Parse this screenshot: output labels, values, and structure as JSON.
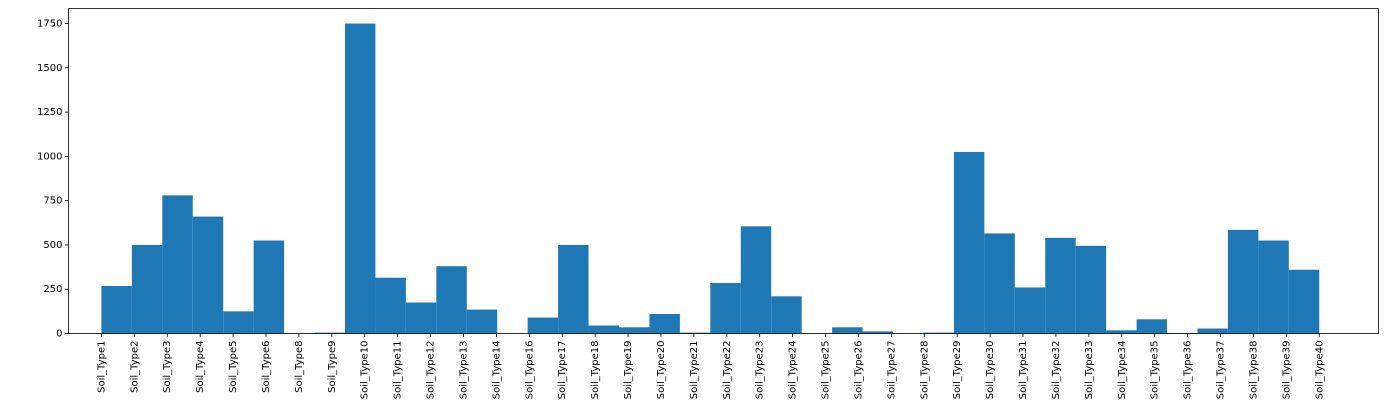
{
  "chart_data": {
    "type": "histogram",
    "color": "#1f77b4",
    "bins": [
      0,
      0.925,
      1.85,
      2.775,
      3.7,
      4.625,
      5.55,
      6.475,
      7.4,
      8.325,
      9.25,
      10.175,
      11.1,
      12.025,
      12.95,
      13.875,
      14.8,
      15.725,
      16.65,
      17.575,
      18.5,
      19.425,
      20.35,
      21.275,
      22.2,
      23.125,
      24.05,
      24.975,
      25.9,
      26.825,
      27.75,
      28.675,
      29.6,
      30.525,
      31.45,
      32.375,
      33.3,
      34.225,
      35.15,
      36.075,
      37
    ],
    "values": [
      268,
      500,
      780,
      660,
      125,
      525,
      1,
      5,
      1750,
      315,
      175,
      380,
      135,
      0,
      90,
      500,
      45,
      35,
      110,
      5,
      285,
      605,
      210,
      1,
      35,
      12,
      0,
      5,
      1025,
      565,
      260,
      540,
      495,
      18,
      80,
      3,
      28,
      585,
      525,
      360
    ],
    "xlim": [
      -1,
      38.8
    ],
    "xticks": [
      {
        "value": 0,
        "label": "Soil_Type1"
      },
      {
        "value": 1,
        "label": "Soil_Type2"
      },
      {
        "value": 2,
        "label": "Soil_Type3"
      },
      {
        "value": 3,
        "label": "Soil_Type4"
      },
      {
        "value": 4,
        "label": "Soil_Type5"
      },
      {
        "value": 5,
        "label": "Soil_Type6"
      },
      {
        "value": 6,
        "label": "Soil_Type8"
      },
      {
        "value": 7,
        "label": "Soil_Type9"
      },
      {
        "value": 8,
        "label": "Soil_Type10"
      },
      {
        "value": 9,
        "label": "Soil_Type11"
      },
      {
        "value": 10,
        "label": "Soil_Type12"
      },
      {
        "value": 11,
        "label": "Soil_Type13"
      },
      {
        "value": 12,
        "label": "Soil_Type14"
      },
      {
        "value": 13,
        "label": "Soil_Type16"
      },
      {
        "value": 14,
        "label": "Soil_Type17"
      },
      {
        "value": 15,
        "label": "Soil_Type18"
      },
      {
        "value": 16,
        "label": "Soil_Type19"
      },
      {
        "value": 17,
        "label": "Soil_Type20"
      },
      {
        "value": 18,
        "label": "Soil_Type21"
      },
      {
        "value": 19,
        "label": "Soil_Type22"
      },
      {
        "value": 20,
        "label": "Soil_Type23"
      },
      {
        "value": 21,
        "label": "Soil_Type24"
      },
      {
        "value": 22,
        "label": "Soil_Type25"
      },
      {
        "value": 23,
        "label": "Soil_Type26"
      },
      {
        "value": 24,
        "label": "Soil_Type27"
      },
      {
        "value": 25,
        "label": "Soil_Type28"
      },
      {
        "value": 26,
        "label": "Soil_Type29"
      },
      {
        "value": 27,
        "label": "Soil_Type30"
      },
      {
        "value": 28,
        "label": "Soil_Type31"
      },
      {
        "value": 29,
        "label": "Soil_Type32"
      },
      {
        "value": 30,
        "label": "Soil_Type33"
      },
      {
        "value": 31,
        "label": "Soil_Type34"
      },
      {
        "value": 32,
        "label": "Soil_Type35"
      },
      {
        "value": 33,
        "label": "Soil_Type36"
      },
      {
        "value": 34,
        "label": "Soil_Type37"
      },
      {
        "value": 35,
        "label": "Soil_Type38"
      },
      {
        "value": 36,
        "label": "Soil_Type39"
      },
      {
        "value": 37,
        "label": "Soil_Type40"
      }
    ],
    "ylim": [
      0,
      1835
    ],
    "yticks": [
      0,
      250,
      500,
      750,
      1000,
      1250,
      1500,
      1750
    ]
  }
}
